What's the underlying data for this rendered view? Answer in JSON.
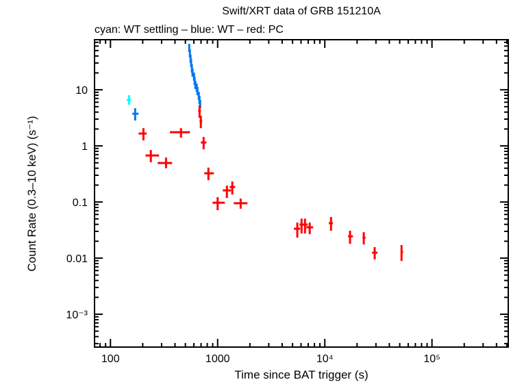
{
  "chart_data": {
    "type": "scatter",
    "title": "Swift/XRT data of GRB 151210A",
    "subtitle": "cyan: WT settling – blue: WT – red: PC",
    "xlabel": "Time since BAT trigger (s)",
    "ylabel": "Count Rate (0.3–10 keV) (s⁻¹)",
    "xscale": "log",
    "yscale": "log",
    "xlim": [
      71,
      515000
    ],
    "ylim": [
      0.00026,
      78
    ],
    "grid": false,
    "x_ticks": [
      {
        "value": 100,
        "label": "100"
      },
      {
        "value": 1000,
        "label": "1000"
      },
      {
        "value": 10000,
        "label": "10⁴"
      },
      {
        "value": 100000,
        "label": "10⁵"
      }
    ],
    "y_ticks": [
      {
        "value": 10,
        "label": "10"
      },
      {
        "value": 1,
        "label": "1"
      },
      {
        "value": 0.1,
        "label": "0.1"
      },
      {
        "value": 0.01,
        "label": "0.01"
      },
      {
        "value": 0.001,
        "label": "10⁻³"
      }
    ],
    "series": [
      {
        "mode": "WT settling",
        "color": "#00ffff",
        "points": [
          {
            "x": 149,
            "xlo": 142,
            "xhi": 156,
            "y": 6.56,
            "ylo": 5.4,
            "yhi": 8.0
          }
        ]
      },
      {
        "mode": "WT",
        "color": "#0077ee",
        "points": [
          {
            "x": 170,
            "xlo": 160,
            "xhi": 183,
            "y": 3.74,
            "ylo": 2.83,
            "yhi": 4.69
          },
          {
            "x": 543,
            "xlo": 540,
            "xhi": 547,
            "y": 55.5,
            "ylo": 47,
            "yhi": 66
          },
          {
            "x": 551,
            "xlo": 547,
            "xhi": 555,
            "y": 44.3,
            "ylo": 37.5,
            "yhi": 52.5
          },
          {
            "x": 559,
            "xlo": 555,
            "xhi": 563,
            "y": 35.4,
            "ylo": 30,
            "yhi": 42
          },
          {
            "x": 566,
            "xlo": 563,
            "xhi": 570,
            "y": 29.9,
            "ylo": 25.3,
            "yhi": 35.4
          },
          {
            "x": 575,
            "xlo": 570,
            "xhi": 579,
            "y": 23.9,
            "ylo": 20.2,
            "yhi": 28.3
          },
          {
            "x": 583,
            "xlo": 579,
            "xhi": 592,
            "y": 20.2,
            "ylo": 17.1,
            "yhi": 23.9
          },
          {
            "x": 602,
            "xlo": 592,
            "xhi": 606,
            "y": 17.1,
            "ylo": 14.5,
            "yhi": 20.2
          },
          {
            "x": 610,
            "xlo": 606,
            "xhi": 615,
            "y": 14.4,
            "ylo": 12.2,
            "yhi": 17.0
          },
          {
            "x": 620,
            "xlo": 615,
            "xhi": 629,
            "y": 12.2,
            "ylo": 10.3,
            "yhi": 14.4
          },
          {
            "x": 638,
            "xlo": 629,
            "xhi": 643,
            "y": 10.9,
            "ylo": 9.2,
            "yhi": 12.9
          },
          {
            "x": 648,
            "xlo": 643,
            "xhi": 657,
            "y": 9.5,
            "ylo": 8.0,
            "yhi": 11.2
          },
          {
            "x": 667,
            "xlo": 657,
            "xhi": 672,
            "y": 7.77,
            "ylo": 6.6,
            "yhi": 9.2
          },
          {
            "x": 677,
            "xlo": 672,
            "xhi": 682,
            "y": 6.56,
            "ylo": 5.5,
            "yhi": 7.8
          },
          {
            "x": 687,
            "xlo": 682,
            "xhi": 692,
            "y": 5.55,
            "ylo": 4.7,
            "yhi": 6.6
          }
        ]
      },
      {
        "mode": "PC",
        "color": "#ff0000",
        "points": [
          {
            "x": 203,
            "xlo": 183,
            "xhi": 218,
            "y": 1.66,
            "ylo": 1.25,
            "yhi": 2.07
          },
          {
            "x": 238,
            "xlo": 212,
            "xhi": 284,
            "y": 0.675,
            "ylo": 0.51,
            "yhi": 0.845
          },
          {
            "x": 330,
            "xlo": 276,
            "xhi": 376,
            "y": 0.495,
            "ylo": 0.4,
            "yhi": 0.62
          },
          {
            "x": 455,
            "xlo": 359,
            "xhi": 551,
            "y": 1.75,
            "ylo": 1.4,
            "yhi": 2.07
          },
          {
            "x": 678,
            "xlo": 658,
            "xhi": 697,
            "y": 4.19,
            "ylo": 3.16,
            "yhi": 5.25
          },
          {
            "x": 697,
            "xlo": 678,
            "xhi": 718,
            "y": 2.75,
            "ylo": 2.07,
            "yhi": 3.44
          },
          {
            "x": 740,
            "xlo": 697,
            "xhi": 785,
            "y": 1.15,
            "ylo": 0.87,
            "yhi": 1.44
          },
          {
            "x": 820,
            "xlo": 750,
            "xhi": 923,
            "y": 0.325,
            "ylo": 0.245,
            "yhi": 0.41
          },
          {
            "x": 1000,
            "xlo": 895,
            "xhi": 1167,
            "y": 0.097,
            "ylo": 0.0715,
            "yhi": 0.122
          },
          {
            "x": 1220,
            "xlo": 1117,
            "xhi": 1333,
            "y": 0.161,
            "ylo": 0.118,
            "yhi": 0.196
          },
          {
            "x": 1370,
            "xlo": 1294,
            "xhi": 1456,
            "y": 0.185,
            "ylo": 0.136,
            "yhi": 0.232
          },
          {
            "x": 1640,
            "xlo": 1413,
            "xhi": 1897,
            "y": 0.095,
            "ylo": 0.076,
            "yhi": 0.115
          },
          {
            "x": 5540,
            "xlo": 5150,
            "xhi": 5890,
            "y": 0.0334,
            "ylo": 0.0232,
            "yhi": 0.043
          },
          {
            "x": 6070,
            "xlo": 5810,
            "xhi": 6430,
            "y": 0.0396,
            "ylo": 0.0275,
            "yhi": 0.0505
          },
          {
            "x": 6530,
            "xlo": 6340,
            "xhi": 6920,
            "y": 0.0396,
            "ylo": 0.0275,
            "yhi": 0.0505
          },
          {
            "x": 7230,
            "xlo": 6720,
            "xhi": 7780,
            "y": 0.0354,
            "ylo": 0.0267,
            "yhi": 0.043
          },
          {
            "x": 11430,
            "xlo": 10900,
            "xhi": 11900,
            "y": 0.0419,
            "ylo": 0.0308,
            "yhi": 0.054
          },
          {
            "x": 17200,
            "xlo": 16500,
            "xhi": 18300,
            "y": 0.0245,
            "ylo": 0.018,
            "yhi": 0.0308
          },
          {
            "x": 23100,
            "xlo": 22500,
            "xhi": 24000,
            "y": 0.0232,
            "ylo": 0.0175,
            "yhi": 0.029
          },
          {
            "x": 29200,
            "xlo": 27600,
            "xhi": 31000,
            "y": 0.0125,
            "ylo": 0.0095,
            "yhi": 0.0157
          },
          {
            "x": 52000,
            "xlo": 51200,
            "xhi": 53700,
            "y": 0.0129,
            "ylo": 0.0089,
            "yhi": 0.0171
          }
        ]
      }
    ]
  }
}
